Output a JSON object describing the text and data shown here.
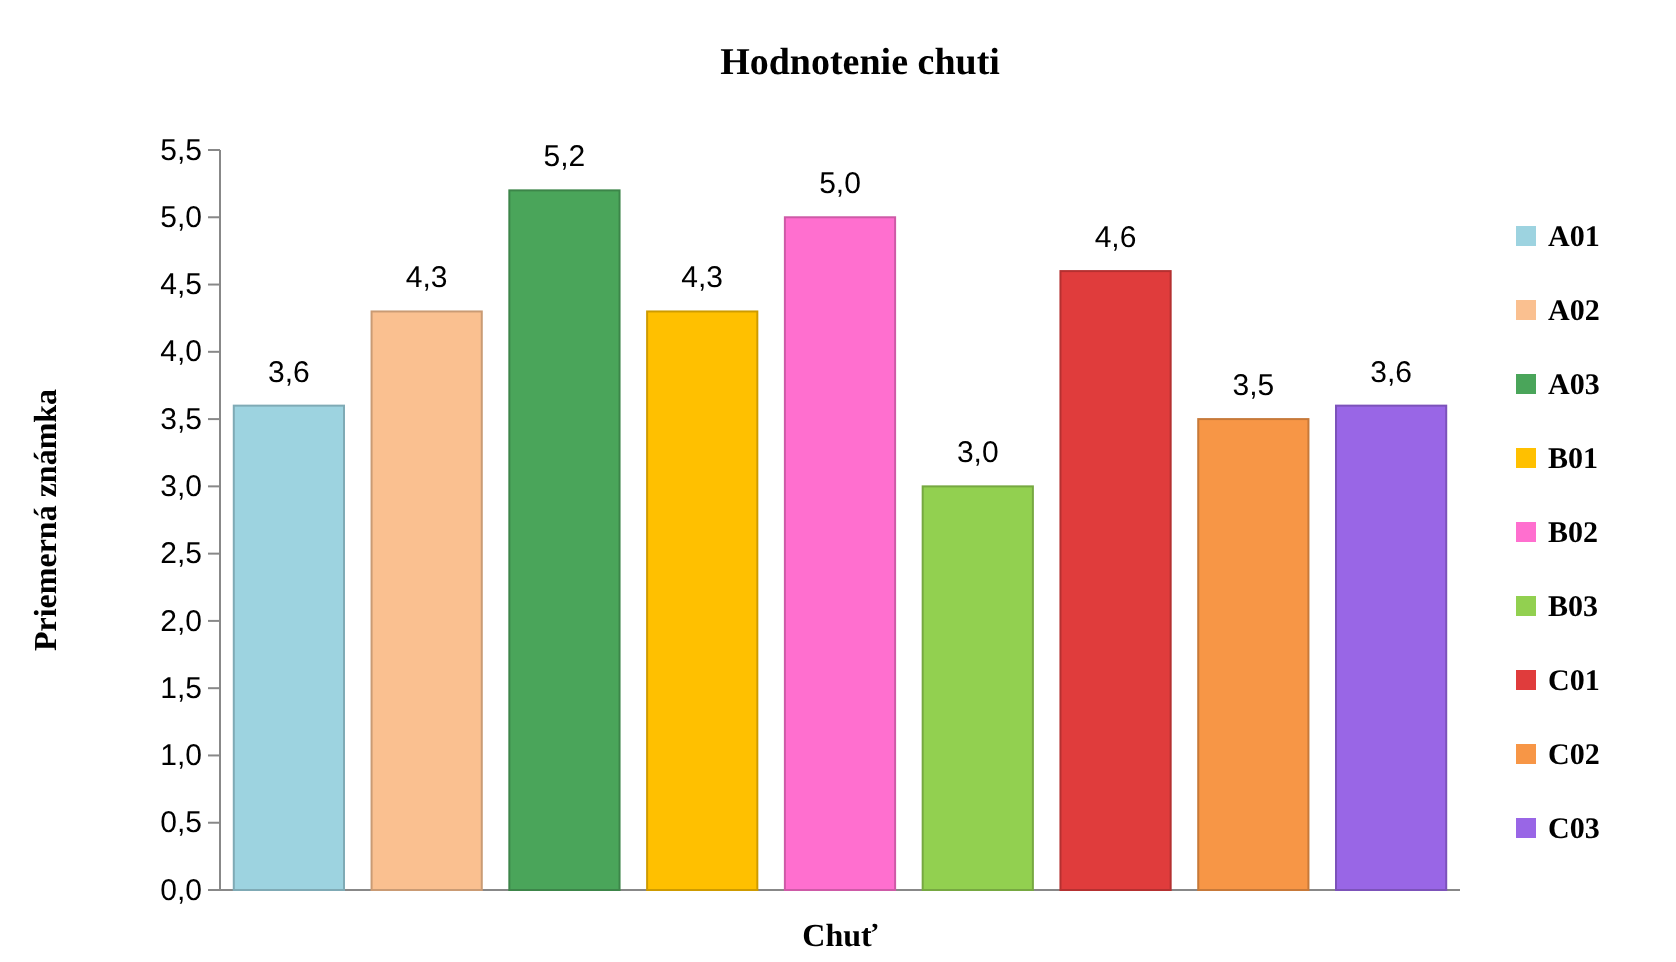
{
  "chart_data": {
    "type": "bar",
    "title": "Hodnotenie chuti",
    "xlabel": "Chuť",
    "ylabel": "Priemerná známka",
    "categories": [
      null
    ],
    "series": [
      {
        "name": "A01",
        "color": "#9dd3e0",
        "values": [
          3.6
        ],
        "value_labels": [
          "3,6"
        ]
      },
      {
        "name": "A02",
        "color": "#fac090",
        "values": [
          4.3
        ],
        "value_labels": [
          "4,3"
        ]
      },
      {
        "name": "A03",
        "color": "#4aa55a",
        "values": [
          5.2
        ],
        "value_labels": [
          "5,2"
        ]
      },
      {
        "name": "B01",
        "color": "#ffc000",
        "values": [
          4.3
        ],
        "value_labels": [
          "4,3"
        ]
      },
      {
        "name": "B02",
        "color": "#ff6fcf",
        "values": [
          5.0
        ],
        "value_labels": [
          "5,0"
        ]
      },
      {
        "name": "B03",
        "color": "#92d050",
        "values": [
          3.0
        ],
        "value_labels": [
          "3,0"
        ]
      },
      {
        "name": "C01",
        "color": "#e03c3c",
        "values": [
          4.6
        ],
        "value_labels": [
          "4,6"
        ]
      },
      {
        "name": "C02",
        "color": "#f79646",
        "values": [
          3.5
        ],
        "value_labels": [
          "3,5"
        ]
      },
      {
        "name": "C03",
        "color": "#9966e6",
        "values": [
          3.6
        ],
        "value_labels": [
          "3,6"
        ]
      }
    ],
    "ylim": [
      0,
      5.5
    ],
    "yticks": [
      {
        "value": 0,
        "label": "0,0"
      },
      {
        "value": 0.5,
        "label": "0,5"
      },
      {
        "value": 1,
        "label": "1,0"
      },
      {
        "value": 1.5,
        "label": "1,5"
      },
      {
        "value": 2,
        "label": "2,0"
      },
      {
        "value": 2.5,
        "label": "2,5"
      },
      {
        "value": 3,
        "label": "3,0"
      },
      {
        "value": 3.5,
        "label": "3,5"
      },
      {
        "value": 4,
        "label": "4,0"
      },
      {
        "value": 4.5,
        "label": "4,5"
      },
      {
        "value": 5,
        "label": "5,0"
      },
      {
        "value": 5.5,
        "label": "5,5"
      }
    ],
    "grid": false,
    "legend": "right"
  }
}
